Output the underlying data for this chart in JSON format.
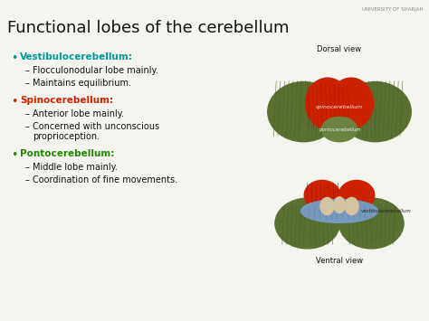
{
  "title": "Functional lobes of the cerebellum",
  "title_fontsize": 13,
  "background_color": "#f5f5f0",
  "text_color": "#111111",
  "dorsal_label": "Dorsal view",
  "ventral_label": "Ventral view",
  "university_text": "UNIVERSITY OF SHARJAH",
  "bullet_items": [
    {
      "header": "Vestibulocerebellum",
      "header_color": "#009999",
      "sub_items": [
        "Flocculonodular lobe mainly.",
        "Maintains equilibrium."
      ]
    },
    {
      "header": "Spinocerebellum",
      "header_color": "#cc2200",
      "sub_items": [
        "Anterior lobe mainly.",
        "Concerned with unconscious\nproprioception."
      ]
    },
    {
      "header": "Pontocerebellum",
      "header_color": "#228800",
      "sub_items": [
        "Middle lobe mainly.",
        "Coordination of fine movements."
      ]
    }
  ],
  "olive_dark": "#4a5e2a",
  "olive_mid": "#5a7030",
  "olive_light": "#6b8240",
  "red_dark": "#a81800",
  "red_mid": "#cc2200",
  "red_light": "#e03010",
  "blue_mid": "#7799bb",
  "beige_color": "#d4c4a0",
  "spinocerebellum_label": "spinocerebellum",
  "pontocerebellum_label": "pontocerebellum",
  "vestibulocerebellum_label": "vestibulocerebellum",
  "label_color": "#eeeeee"
}
